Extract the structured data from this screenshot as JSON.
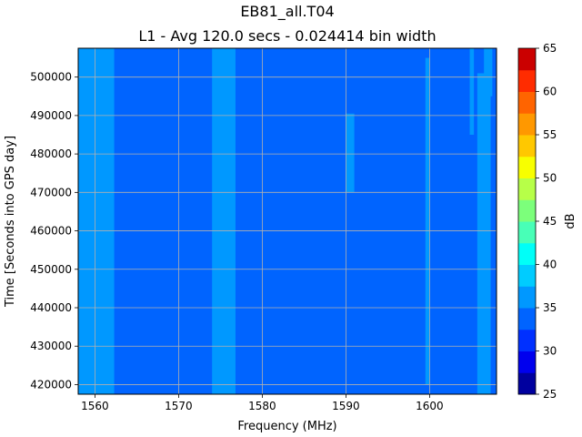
{
  "chart_data": {
    "type": "heatmap",
    "title": "EB81_all.T04",
    "subtitle": "L1 - Avg 120.0 secs - 0.024414 bin width",
    "xlabel": "Frequency (MHz)",
    "ylabel": "Time [Seconds into GPS day]",
    "xlim": [
      1558.0,
      1608.0
    ],
    "ylim": [
      417500,
      507500
    ],
    "x_ticks": [
      1560,
      1570,
      1580,
      1590,
      1600
    ],
    "x_tick_labels": [
      "1560",
      "1570",
      "1580",
      "1590",
      "1600"
    ],
    "y_ticks": [
      420000,
      430000,
      440000,
      450000,
      460000,
      470000,
      480000,
      490000,
      500000
    ],
    "y_tick_labels": [
      "420000",
      "430000",
      "440000",
      "450000",
      "460000",
      "470000",
      "480000",
      "490000",
      "500000"
    ],
    "grid": true,
    "colorbar": {
      "label": "dB",
      "min": 25,
      "max": 65,
      "ticks": [
        25,
        30,
        35,
        40,
        45,
        50,
        55,
        60,
        65
      ],
      "tick_labels": [
        "25",
        "30",
        "35",
        "40",
        "45",
        "50",
        "55",
        "60",
        "65"
      ],
      "levels": [
        25,
        27.5,
        30,
        32.5,
        35,
        37.5,
        40,
        42.5,
        45,
        47.5,
        50,
        52.5,
        55,
        57.5,
        60,
        62.5,
        65
      ],
      "colors": [
        "#00009f",
        "#0000ee",
        "#0030ff",
        "#0064ff",
        "#0098ff",
        "#00ccff",
        "#00fff8",
        "#48ffb7",
        "#7cff7b",
        "#b7ff48",
        "#f8ff00",
        "#ffc800",
        "#ff9800",
        "#ff6400",
        "#ff2c00",
        "#cb0000"
      ]
    },
    "background_level_db": 33.5,
    "bands": [
      {
        "f_start": 1558.0,
        "f_end": 1562.3,
        "level_db": 36.5
      },
      {
        "f_start": 1574.0,
        "f_end": 1576.8,
        "level_db": 36.5
      },
      {
        "f_start": 1590.0,
        "f_end": 1591.0,
        "level_db": 36.5,
        "t_start": 470000,
        "t_end": 490500
      },
      {
        "f_start": 1599.5,
        "f_end": 1600.0,
        "level_db": 36.5,
        "t_start": 420000,
        "t_end": 505000
      },
      {
        "f_start": 1605.7,
        "f_end": 1607.3,
        "level_db": 36.5,
        "t_start": 417500,
        "t_end": 501000
      },
      {
        "f_start": 1604.8,
        "f_end": 1605.3,
        "level_db": 36.5,
        "t_start": 485000,
        "t_end": 507500
      },
      {
        "f_start": 1606.5,
        "f_end": 1607.5,
        "level_db": 36.5,
        "t_start": 495000,
        "t_end": 507500
      }
    ]
  }
}
